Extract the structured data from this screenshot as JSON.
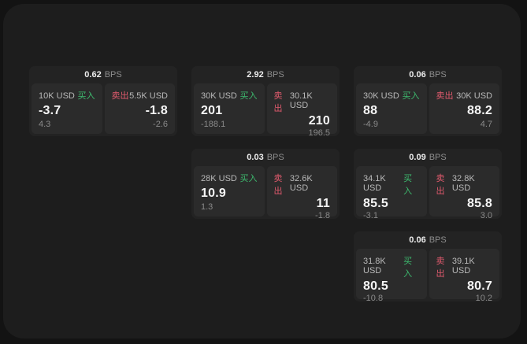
{
  "labels": {
    "bps": "BPS",
    "buy": "买入",
    "sell": "卖出"
  },
  "colors": {
    "buy_green": "#3dba6e",
    "sell_red": "#e05a6d",
    "page_bg": "#131313",
    "window_bg": "#1d1d1d",
    "card_bg": "#232323",
    "panel_bg": "#2b2b2b"
  },
  "cards": [
    {
      "bps_value": "0.62",
      "buy": {
        "size": "10K USD",
        "price": "-3.7",
        "change": "4.3"
      },
      "sell": {
        "size": "5.5K USD",
        "price": "-1.8",
        "change": "-2.6"
      }
    },
    {
      "bps_value": "2.92",
      "buy": {
        "size": "30K USD",
        "price": "201",
        "change": "-188.1"
      },
      "sell": {
        "size": "30.1K USD",
        "price": "210",
        "change": "196.5"
      }
    },
    {
      "bps_value": "0.06",
      "buy": {
        "size": "30K USD",
        "price": "88",
        "change": "-4.9"
      },
      "sell": {
        "size": "30K USD",
        "price": "88.2",
        "change": "4.7"
      }
    },
    {
      "bps_value": "0.03",
      "buy": {
        "size": "28K USD",
        "price": "10.9",
        "change": "1.3"
      },
      "sell": {
        "size": "32.6K USD",
        "price": "11",
        "change": "-1.8"
      }
    },
    {
      "bps_value": "0.09",
      "buy": {
        "size": "34.1K USD",
        "price": "85.5",
        "change": "-3.1"
      },
      "sell": {
        "size": "32.8K USD",
        "price": "85.8",
        "change": "3.0"
      }
    },
    {
      "bps_value": "0.06",
      "buy": {
        "size": "31.8K USD",
        "price": "80.5",
        "change": "-10.8"
      },
      "sell": {
        "size": "39.1K USD",
        "price": "80.7",
        "change": "10.2"
      }
    }
  ]
}
